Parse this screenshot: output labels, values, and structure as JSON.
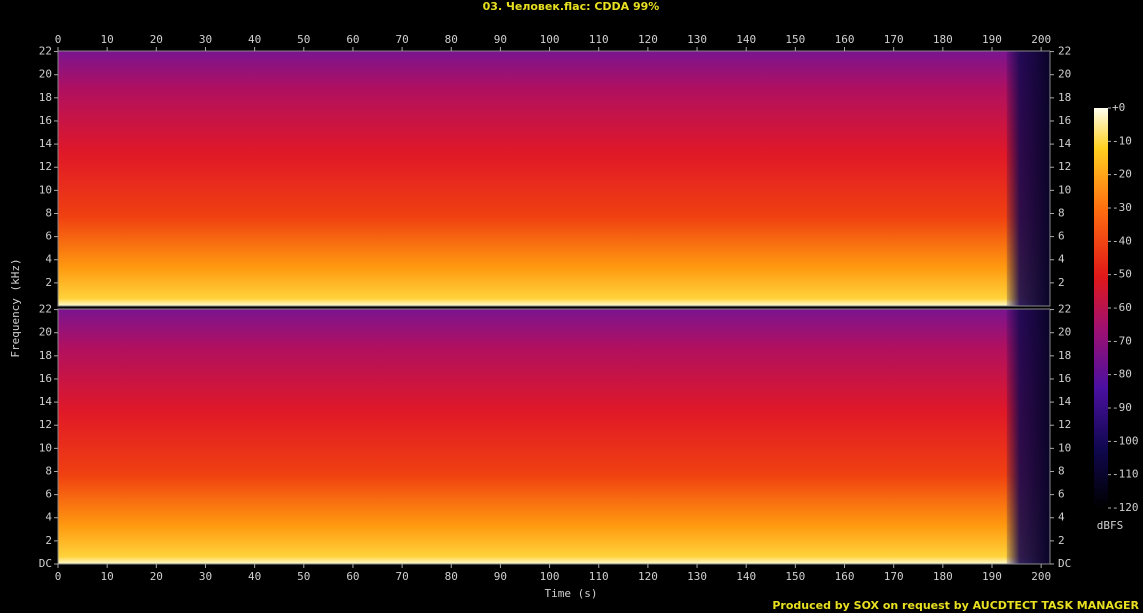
{
  "chart_data": {
    "type": "spectrogram",
    "title": "03. Человек.flac: CDDA 99%",
    "x_label": "Time (s)",
    "y_label": "Frequency (kHz)",
    "xlim": [
      0,
      201.8
    ],
    "xticks": [
      0,
      10,
      20,
      30,
      40,
      50,
      60,
      70,
      80,
      90,
      100,
      110,
      120,
      130,
      140,
      150,
      160,
      170,
      180,
      190,
      200
    ],
    "panels": [
      {
        "ylim": [
          0,
          22.05
        ],
        "yticks": [
          2,
          4,
          6,
          8,
          10,
          12,
          14,
          16,
          18,
          20,
          22
        ]
      },
      {
        "ylim": [
          0,
          22.05
        ],
        "yticks": [
          {
            "value": 0,
            "label": "DC"
          },
          2,
          4,
          6,
          8,
          10,
          12,
          14,
          16,
          18,
          20,
          22
        ]
      }
    ],
    "colorbar": {
      "label": "dBFS",
      "clim": [
        -120,
        0
      ],
      "ticks": [
        {
          "value": 0,
          "label": "+0"
        },
        -10,
        -20,
        -30,
        -40,
        -50,
        -60,
        -70,
        -80,
        -90,
        -100,
        -110,
        -120
      ]
    },
    "footer": "Produced by SOX on request by AUCDTECT TASK MANAGER"
  }
}
